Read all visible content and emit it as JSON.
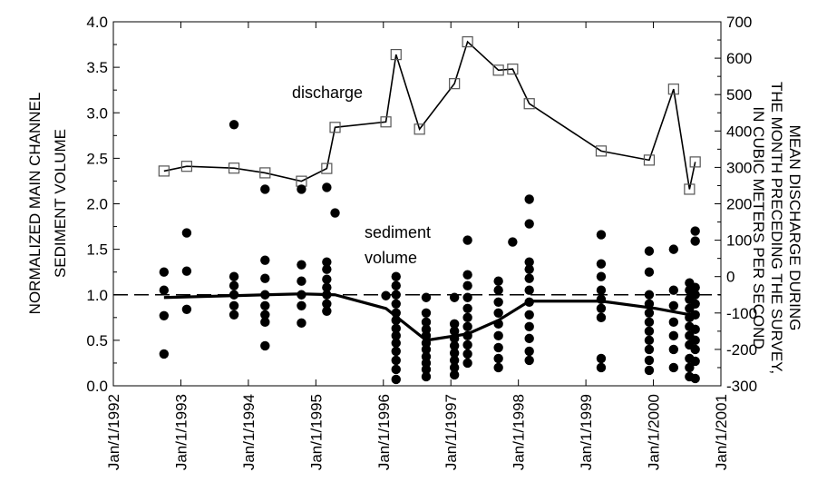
{
  "chart_data": {
    "type": "scatter",
    "title": "",
    "xlabel": "",
    "x_ticks": [
      "Jan/1/1992",
      "Jan/1/1993",
      "Jan/1/1994",
      "Jan/1/1995",
      "Jan/1/1996",
      "Jan/1/1997",
      "Jan/1/1998",
      "Jan/1/1999",
      "Jan/1/2000",
      "Jan/1/2001"
    ],
    "xlim": [
      "1992-01-01",
      "2001-01-01"
    ],
    "ylabel_left": [
      "NORMALIZED MAIN CHANNEL",
      "SEDIMENT VOLUME"
    ],
    "ylim_left": [
      0,
      4
    ],
    "yticks_left": [
      "0.0",
      "0.5",
      "1.0",
      "1.5",
      "2.0",
      "2.5",
      "3.0",
      "3.5",
      "4.0"
    ],
    "ylabel_right": [
      "MEAN DISCHARGE DURING",
      "THE MONTH PRECEDING THE SURVEY,",
      "IN CUBIC METERS PER SECOND"
    ],
    "ylim_right": [
      -300,
      700
    ],
    "yticks_right": [
      "-300",
      "-200",
      "-100",
      "0",
      "100",
      "200",
      "300",
      "400",
      "500",
      "600",
      "700"
    ],
    "reference_line": {
      "y": 1.0,
      "axis": "left",
      "style": "dashed"
    },
    "annotations": {
      "discharge": "discharge",
      "sediment_1": "sediment",
      "sediment_2": "volume"
    },
    "series": [
      {
        "name": "discharge",
        "axis": "right",
        "style": "thin line with open square markers",
        "points": [
          [
            "1992-10-01",
            290
          ],
          [
            "1993-02-01",
            303
          ],
          [
            "1993-10-15",
            298
          ],
          [
            "1994-04-01",
            285
          ],
          [
            "1994-10-15",
            262
          ],
          [
            "1995-03-01",
            297
          ],
          [
            "1995-04-15",
            410
          ],
          [
            "1996-01-15",
            425
          ],
          [
            "1996-03-10",
            610
          ],
          [
            "1996-07-15",
            405
          ],
          [
            "1997-01-20",
            530
          ],
          [
            "1997-04-01",
            645
          ],
          [
            "1997-09-15",
            567
          ],
          [
            "1997-12-01",
            570
          ],
          [
            "1998-03-01",
            475
          ],
          [
            "1999-03-25",
            345
          ],
          [
            "1999-12-10",
            320
          ],
          [
            "2000-04-20",
            515
          ],
          [
            "2000-07-15",
            240
          ],
          [
            "2000-08-15",
            315
          ]
        ]
      },
      {
        "name": "sediment volume (mean)",
        "axis": "left",
        "style": "thick line",
        "points": [
          [
            "1992-10-01",
            0.97
          ],
          [
            "1993-10-15",
            0.99
          ],
          [
            "1994-04-01",
            1.0
          ],
          [
            "1994-10-15",
            1.01
          ],
          [
            "1995-04-15",
            1.0
          ],
          [
            "1996-01-15",
            0.85
          ],
          [
            "1996-08-20",
            0.5
          ],
          [
            "1997-04-01",
            0.57
          ],
          [
            "1997-09-15",
            0.72
          ],
          [
            "1998-03-01",
            0.93
          ],
          [
            "1999-03-25",
            0.93
          ],
          [
            "2000-01-15",
            0.85
          ],
          [
            "2000-08-15",
            0.77
          ]
        ]
      },
      {
        "name": "sediment volume (individual)",
        "axis": "left",
        "style": "filled circles",
        "groups": [
          {
            "date": "1992-10-01",
            "values": [
              0.35,
              0.77,
              1.05,
              1.25
            ]
          },
          {
            "date": "1993-02-01",
            "values": [
              0.84,
              1.26,
              1.68
            ]
          },
          {
            "date": "1993-10-15",
            "values": [
              0.78,
              0.88,
              1.0,
              1.1,
              1.2,
              2.87
            ]
          },
          {
            "date": "1994-04-01",
            "values": [
              0.44,
              0.7,
              0.78,
              0.88,
              1.0,
              1.18,
              1.38,
              2.16
            ]
          },
          {
            "date": "1994-10-15",
            "values": [
              0.69,
              0.88,
              1.0,
              1.15,
              1.33,
              2.16
            ]
          },
          {
            "date": "1995-03-01",
            "values": [
              0.82,
              0.9,
              1.0,
              1.08,
              1.17,
              1.28,
              1.36,
              2.18
            ]
          },
          {
            "date": "1995-04-15",
            "values": [
              1.9
            ]
          },
          {
            "date": "1996-01-15",
            "values": [
              0.99
            ]
          },
          {
            "date": "1996-03-10",
            "values": [
              0.07,
              0.18,
              0.28,
              0.38,
              0.47,
              0.55,
              0.63,
              0.72,
              0.8,
              0.9,
              1.0,
              1.1,
              1.2
            ]
          },
          {
            "date": "1996-08-20",
            "values": [
              0.1,
              0.18,
              0.25,
              0.32,
              0.4,
              0.47,
              0.55,
              0.62,
              0.7,
              0.8,
              0.97
            ]
          },
          {
            "date": "1997-01-20",
            "values": [
              0.12,
              0.2,
              0.28,
              0.36,
              0.44,
              0.52,
              0.6,
              0.68,
              0.97
            ]
          },
          {
            "date": "1997-04-01",
            "values": [
              0.25,
              0.35,
              0.45,
              0.55,
              0.65,
              0.75,
              0.85,
              0.97,
              1.1,
              1.22,
              1.6
            ]
          },
          {
            "date": "1997-09-15",
            "values": [
              0.2,
              0.3,
              0.42,
              0.55,
              0.68,
              0.8,
              0.92,
              1.05,
              1.15
            ]
          },
          {
            "date": "1997-12-01",
            "values": [
              1.58
            ]
          },
          {
            "date": "1998-03-01",
            "values": [
              0.28,
              0.38,
              0.52,
              0.65,
              0.78,
              0.92,
              1.05,
              1.18,
              1.28,
              1.36,
              1.78,
              2.05
            ]
          },
          {
            "date": "1999-03-25",
            "values": [
              0.2,
              0.3,
              0.75,
              0.85,
              0.95,
              1.05,
              1.2,
              1.34,
              1.66
            ]
          },
          {
            "date": "1999-12-10",
            "values": [
              0.17,
              0.28,
              0.4,
              0.5,
              0.6,
              0.7,
              0.8,
              0.9,
              1.0,
              1.25,
              1.48
            ]
          },
          {
            "date": "2000-04-20",
            "values": [
              0.2,
              0.4,
              0.55,
              0.7,
              0.88,
              1.05,
              1.5
            ]
          },
          {
            "date": "2000-07-15",
            "values": [
              0.1,
              0.2,
              0.3,
              0.45,
              0.55,
              0.65,
              0.75,
              0.85,
              0.95,
              1.05,
              1.13
            ]
          },
          {
            "date": "2000-08-15",
            "values": [
              0.08,
              0.27,
              0.4,
              0.5,
              0.62,
              0.78,
              0.9,
              1.0,
              1.08,
              1.59,
              1.7
            ]
          }
        ]
      }
    ]
  }
}
